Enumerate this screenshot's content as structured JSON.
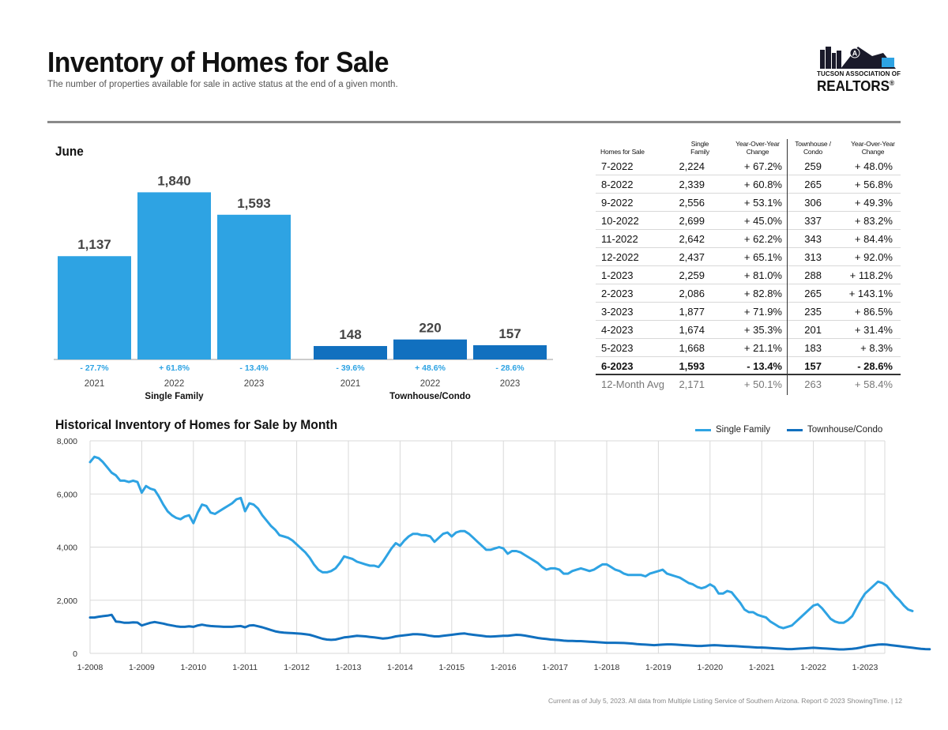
{
  "header": {
    "title": "Inventory of Homes for Sale",
    "subtitle": "The number of properties available for sale in active status at the end of a given month."
  },
  "logo": {
    "line1": "TUCSON ASSOCIATION OF",
    "line2": "REALTORS",
    "reg": "®",
    "badge": "A"
  },
  "colors": {
    "single_family": "#2ea3e3",
    "townhouse": "#1170bf",
    "positive_text": "#2ea3e3",
    "negative_text": "#2ea3e3"
  },
  "june": {
    "label": "June"
  },
  "chart_data": [
    {
      "type": "bar",
      "title": "June",
      "groups": [
        {
          "name": "Single Family",
          "color": "#2ea3e3",
          "bars": [
            {
              "year": "2021",
              "value": 1137,
              "label": "1,137",
              "change": "- 27.7%"
            },
            {
              "year": "2022",
              "value": 1840,
              "label": "1,840",
              "change": "+ 61.8%"
            },
            {
              "year": "2023",
              "value": 1593,
              "label": "1,593",
              "change": "- 13.4%"
            }
          ]
        },
        {
          "name": "Townhouse/Condo",
          "color": "#1170bf",
          "bars": [
            {
              "year": "2021",
              "value": 148,
              "label": "148",
              "change": "- 39.6%"
            },
            {
              "year": "2022",
              "value": 220,
              "label": "220",
              "change": "+ 48.6%"
            },
            {
              "year": "2023",
              "value": 157,
              "label": "157",
              "change": "- 28.6%"
            }
          ]
        }
      ]
    },
    {
      "type": "line",
      "title": "Historical Inventory of Homes for Sale by Month",
      "xlabel": "",
      "ylabel": "",
      "ylim": [
        0,
        8000
      ],
      "yticks": [
        0,
        2000,
        4000,
        6000,
        8000
      ],
      "ytick_labels": [
        "0",
        "2,000",
        "4,000",
        "6,000",
        "8,000"
      ],
      "xticks": [
        "1-2008",
        "1-2009",
        "1-2010",
        "1-2011",
        "1-2012",
        "1-2013",
        "1-2014",
        "1-2015",
        "1-2016",
        "1-2017",
        "1-2018",
        "1-2019",
        "1-2020",
        "1-2021",
        "1-2022",
        "1-2023"
      ],
      "x_start": "1-2008",
      "x_end": "6-2023",
      "grid": true,
      "legend": "top-right",
      "series": [
        {
          "name": "Single Family",
          "color": "#2ea3e3",
          "values": [
            7200,
            7400,
            7350,
            7200,
            7000,
            6800,
            6700,
            6500,
            6500,
            6450,
            6500,
            6450,
            6050,
            6300,
            6200,
            6150,
            5900,
            5600,
            5350,
            5200,
            5100,
            5050,
            5150,
            5200,
            4900,
            5300,
            5600,
            5550,
            5300,
            5250,
            5350,
            5450,
            5550,
            5650,
            5800,
            5850,
            5350,
            5650,
            5600,
            5450,
            5200,
            5000,
            4800,
            4650,
            4450,
            4400,
            4350,
            4250,
            4100,
            3950,
            3800,
            3600,
            3350,
            3150,
            3050,
            3050,
            3100,
            3200,
            3400,
            3650,
            3600,
            3550,
            3450,
            3400,
            3350,
            3300,
            3300,
            3250,
            3450,
            3700,
            3950,
            4150,
            4050,
            4250,
            4400,
            4500,
            4500,
            4450,
            4450,
            4400,
            4200,
            4350,
            4500,
            4550,
            4400,
            4550,
            4600,
            4600,
            4500,
            4350,
            4200,
            4050,
            3900,
            3900,
            3950,
            4000,
            3950,
            3750,
            3850,
            3850,
            3800,
            3700,
            3600,
            3500,
            3400,
            3250,
            3150,
            3200,
            3200,
            3150,
            3000,
            3000,
            3100,
            3150,
            3200,
            3150,
            3100,
            3150,
            3250,
            3350,
            3350,
            3250,
            3150,
            3100,
            3000,
            2950,
            2950,
            2950,
            2950,
            2900,
            3000,
            3050,
            3100,
            3150,
            3000,
            2950,
            2900,
            2850,
            2750,
            2650,
            2600,
            2500,
            2450,
            2500,
            2600,
            2500,
            2250,
            2250,
            2350,
            2300,
            2100,
            1900,
            1650,
            1550,
            1550,
            1450,
            1400,
            1350,
            1200,
            1100,
            1000,
            950,
            1000,
            1050,
            1200,
            1350,
            1500,
            1650,
            1800,
            1850,
            1700,
            1500,
            1300,
            1200,
            1150,
            1150,
            1250,
            1400,
            1700,
            2000,
            2250,
            2400,
            2550,
            2700,
            2650,
            2550,
            2350,
            2150,
            2000,
            1800,
            1650,
            1593
          ]
        },
        {
          "name": "Townhouse/Condo",
          "color": "#1170bf",
          "values": [
            1350,
            1350,
            1380,
            1400,
            1420,
            1450,
            1200,
            1180,
            1150,
            1150,
            1170,
            1160,
            1050,
            1100,
            1150,
            1180,
            1150,
            1120,
            1080,
            1050,
            1020,
            1000,
            1000,
            1020,
            1000,
            1050,
            1080,
            1050,
            1030,
            1020,
            1010,
            1000,
            1000,
            1000,
            1020,
            1030,
            980,
            1050,
            1060,
            1020,
            980,
            930,
            880,
            830,
            800,
            780,
            770,
            760,
            750,
            740,
            720,
            700,
            650,
            600,
            550,
            520,
            510,
            520,
            560,
            600,
            620,
            640,
            660,
            650,
            640,
            620,
            600,
            580,
            560,
            570,
            600,
            640,
            660,
            680,
            700,
            720,
            720,
            710,
            690,
            660,
            640,
            640,
            660,
            680,
            700,
            720,
            740,
            750,
            720,
            700,
            680,
            660,
            640,
            630,
            640,
            650,
            660,
            660,
            680,
            700,
            690,
            670,
            640,
            610,
            580,
            560,
            540,
            520,
            510,
            500,
            480,
            470,
            470,
            460,
            460,
            450,
            440,
            430,
            420,
            410,
            400,
            400,
            400,
            395,
            390,
            380,
            370,
            350,
            340,
            330,
            320,
            310,
            320,
            330,
            340,
            340,
            330,
            320,
            310,
            300,
            290,
            280,
            280,
            290,
            300,
            310,
            300,
            290,
            280,
            280,
            270,
            260,
            250,
            240,
            230,
            220,
            220,
            210,
            200,
            190,
            180,
            170,
            160,
            160,
            170,
            180,
            190,
            200,
            210,
            200,
            190,
            180,
            170,
            160,
            150,
            150,
            160,
            170,
            190,
            220,
            260,
            290,
            310,
            330,
            340,
            330,
            310,
            290,
            270,
            250,
            230,
            210,
            190,
            170,
            160,
            157
          ]
        }
      ]
    }
  ],
  "table": {
    "headers": [
      "Homes for Sale",
      "Single Family",
      "Year-Over-Year Change",
      "Townhouse / Condo",
      "Year-Over-Year Change"
    ],
    "rows": [
      {
        "period": "7-2022",
        "sf": "2,224",
        "sf_change": "+ 67.2%",
        "th": "259",
        "th_change": "+ 48.0%"
      },
      {
        "period": "8-2022",
        "sf": "2,339",
        "sf_change": "+ 60.8%",
        "th": "265",
        "th_change": "+ 56.8%"
      },
      {
        "period": "9-2022",
        "sf": "2,556",
        "sf_change": "+ 53.1%",
        "th": "306",
        "th_change": "+ 49.3%"
      },
      {
        "period": "10-2022",
        "sf": "2,699",
        "sf_change": "+ 45.0%",
        "th": "337",
        "th_change": "+ 83.2%"
      },
      {
        "period": "11-2022",
        "sf": "2,642",
        "sf_change": "+ 62.2%",
        "th": "343",
        "th_change": "+ 84.4%"
      },
      {
        "period": "12-2022",
        "sf": "2,437",
        "sf_change": "+ 65.1%",
        "th": "313",
        "th_change": "+ 92.0%"
      },
      {
        "period": "1-2023",
        "sf": "2,259",
        "sf_change": "+ 81.0%",
        "th": "288",
        "th_change": "+ 118.2%"
      },
      {
        "period": "2-2023",
        "sf": "2,086",
        "sf_change": "+ 82.8%",
        "th": "265",
        "th_change": "+ 143.1%"
      },
      {
        "period": "3-2023",
        "sf": "1,877",
        "sf_change": "+ 71.9%",
        "th": "235",
        "th_change": "+ 86.5%"
      },
      {
        "period": "4-2023",
        "sf": "1,674",
        "sf_change": "+ 35.3%",
        "th": "201",
        "th_change": "+ 31.4%"
      },
      {
        "period": "5-2023",
        "sf": "1,668",
        "sf_change": "+ 21.1%",
        "th": "183",
        "th_change": "+ 8.3%"
      },
      {
        "period": "6-2023",
        "sf": "1,593",
        "sf_change": "- 13.4%",
        "th": "157",
        "th_change": "- 28.6%"
      }
    ],
    "avg": {
      "period": "12-Month Avg",
      "sf": "2,171",
      "sf_change": "+ 50.1%",
      "th": "263",
      "th_change": "+ 58.4%"
    }
  },
  "footer": {
    "text": "Current as of July 5, 2023. All data from Multiple Listing Service of Southern Arizona. Report © 2023 ShowingTime. | 12"
  }
}
